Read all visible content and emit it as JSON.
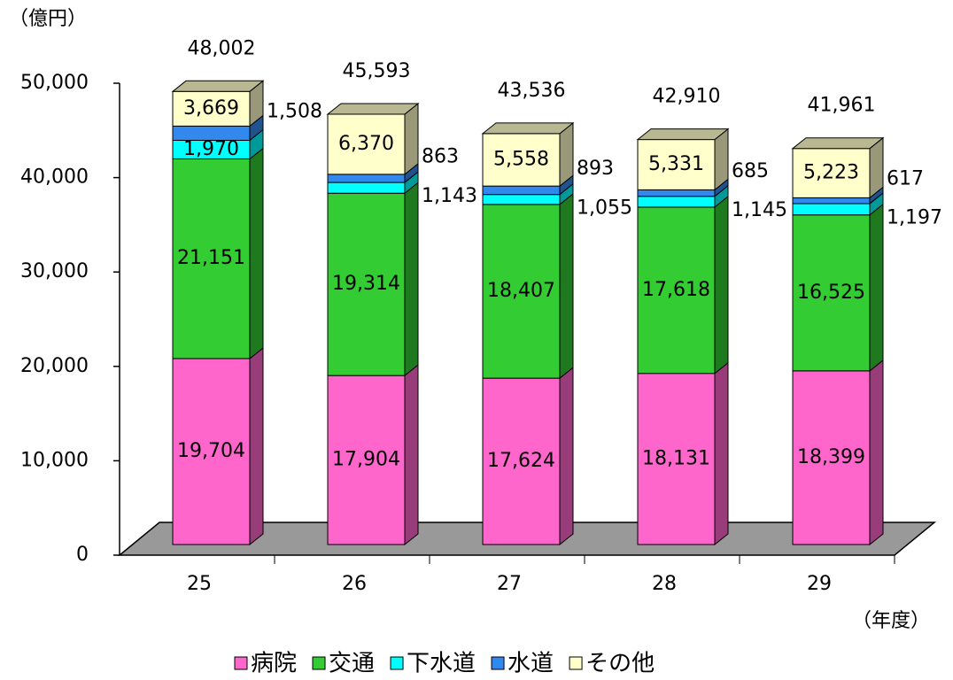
{
  "chart_data": {
    "type": "bar3d_stacked",
    "y_unit": "（億円）",
    "x_unit": "（年度）",
    "categories": [
      "25",
      "26",
      "27",
      "28",
      "29"
    ],
    "series": [
      {
        "name": "病院",
        "color": "#ff66cc",
        "values": [
          19704,
          17904,
          17624,
          18131,
          18399
        ],
        "value_labels": [
          "19,704",
          "17,904",
          "17,624",
          "18,131",
          "18,399"
        ]
      },
      {
        "name": "交通",
        "color": "#33cc33",
        "values": [
          21151,
          19314,
          18407,
          17618,
          16525
        ],
        "value_labels": [
          "21,151",
          "19,314",
          "18,407",
          "17,618",
          "16,525"
        ]
      },
      {
        "name": "下水道",
        "color": "#00ffff",
        "values": [
          1970,
          1143,
          1055,
          1145,
          1197
        ],
        "value_labels": [
          "1,970",
          "1,143",
          "1,055",
          "1,145",
          "1,197"
        ]
      },
      {
        "name": "水道",
        "color": "#3388ee",
        "values": [
          1508,
          863,
          893,
          685,
          617
        ],
        "value_labels": [
          "1,508",
          "863",
          "893",
          "685",
          "617"
        ]
      },
      {
        "name": "その他",
        "color": "#ffffcc",
        "values": [
          3669,
          6370,
          5558,
          5331,
          5223
        ],
        "value_labels": [
          "3,669",
          "6,370",
          "5,558",
          "5,331",
          "5,223"
        ]
      }
    ],
    "totals": [
      48002,
      45593,
      43536,
      42910,
      41961
    ],
    "total_labels": [
      "48,002",
      "45,593",
      "43,536",
      "42,910",
      "41,961"
    ],
    "ylim": [
      0,
      50000
    ],
    "yticks": [
      0,
      {
        "value": 10000,
        "label": "10,000"
      },
      {
        "value": 20000,
        "label": "20,000"
      },
      {
        "value": 30000,
        "label": "30,000"
      },
      {
        "value": 40000,
        "label": "40,000"
      },
      {
        "value": 50000,
        "label": "50,000"
      }
    ]
  }
}
